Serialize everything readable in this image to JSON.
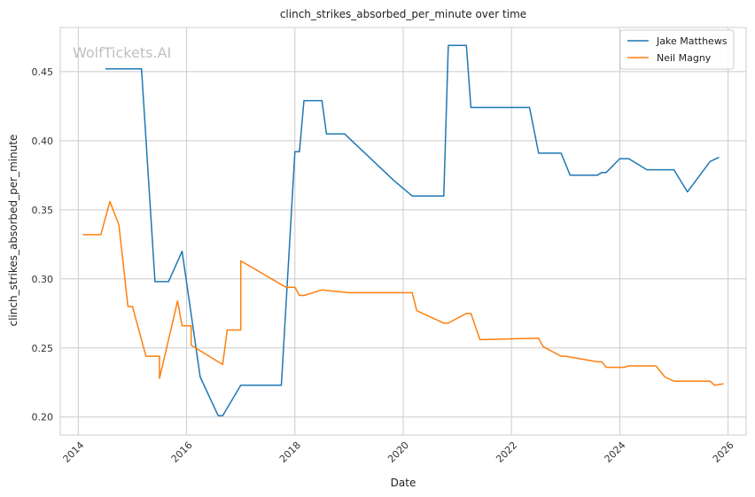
{
  "chart_data": {
    "type": "line",
    "title": "clinch_strikes_absorbed_per_minute over time",
    "xlabel": "Date",
    "ylabel": "clinch_strikes_absorbed_per_minute",
    "x_ticks": [
      "2014",
      "2016",
      "2018",
      "2020",
      "2022",
      "2024",
      "2026"
    ],
    "y_ticks": [
      "0.20",
      "0.25",
      "0.30",
      "0.35",
      "0.40",
      "0.45"
    ],
    "xlim": [
      "2013-09",
      "2026-05"
    ],
    "ylim": [
      0.187,
      0.482
    ],
    "grid": true,
    "legend_position": "top-right",
    "watermark": "WolfTickets.AI",
    "series": [
      {
        "name": "Jake Matthews",
        "color": "#1f77b4",
        "points": [
          [
            "2014-07",
            0.452
          ],
          [
            "2015-03",
            0.452
          ],
          [
            "2015-06",
            0.298
          ],
          [
            "2015-09",
            0.298
          ],
          [
            "2015-12",
            0.32
          ],
          [
            "2016-04",
            0.229
          ],
          [
            "2016-08",
            0.201
          ],
          [
            "2016-09",
            0.201
          ],
          [
            "2017-01",
            0.223
          ],
          [
            "2017-10",
            0.223
          ],
          [
            "2018-01",
            0.392
          ],
          [
            "2018-02",
            0.392
          ],
          [
            "2018-03",
            0.429
          ],
          [
            "2018-07",
            0.429
          ],
          [
            "2018-08",
            0.405
          ],
          [
            "2018-12",
            0.405
          ],
          [
            "2019-11",
            0.371
          ],
          [
            "2020-03",
            0.36
          ],
          [
            "2020-10",
            0.36
          ],
          [
            "2020-11",
            0.469
          ],
          [
            "2021-03",
            0.469
          ],
          [
            "2021-04",
            0.424
          ],
          [
            "2022-05",
            0.424
          ],
          [
            "2022-07",
            0.391
          ],
          [
            "2022-12",
            0.391
          ],
          [
            "2023-02",
            0.375
          ],
          [
            "2023-08",
            0.375
          ],
          [
            "2023-09",
            0.377
          ],
          [
            "2023-10",
            0.377
          ],
          [
            "2024-01",
            0.387
          ],
          [
            "2024-03",
            0.387
          ],
          [
            "2024-07",
            0.379
          ],
          [
            "2025-01",
            0.379
          ],
          [
            "2025-04",
            0.363
          ],
          [
            "2025-09",
            0.385
          ],
          [
            "2025-11",
            0.388
          ]
        ]
      },
      {
        "name": "Neil Magny",
        "color": "#ff7f0e",
        "points": [
          [
            "2014-02",
            0.332
          ],
          [
            "2014-06",
            0.332
          ],
          [
            "2014-08",
            0.356
          ],
          [
            "2014-10",
            0.339
          ],
          [
            "2014-12",
            0.28
          ],
          [
            "2015-01",
            0.28
          ],
          [
            "2015-04",
            0.244
          ],
          [
            "2015-07",
            0.244
          ],
          [
            "2015-07",
            0.228
          ],
          [
            "2015-11",
            0.284
          ],
          [
            "2015-12",
            0.266
          ],
          [
            "2016-02",
            0.266
          ],
          [
            "2016-02",
            0.252
          ],
          [
            "2016-09",
            0.238
          ],
          [
            "2016-10",
            0.263
          ],
          [
            "2017-01",
            0.263
          ],
          [
            "2017-01",
            0.313
          ],
          [
            "2017-11",
            0.294
          ],
          [
            "2018-01",
            0.294
          ],
          [
            "2018-02",
            0.288
          ],
          [
            "2018-03",
            0.288
          ],
          [
            "2018-07",
            0.292
          ],
          [
            "2019-01",
            0.29
          ],
          [
            "2020-03",
            0.29
          ],
          [
            "2020-04",
            0.277
          ],
          [
            "2020-10",
            0.268
          ],
          [
            "2020-11",
            0.268
          ],
          [
            "2021-03",
            0.275
          ],
          [
            "2021-04",
            0.275
          ],
          [
            "2021-06",
            0.256
          ],
          [
            "2022-07",
            0.257
          ],
          [
            "2022-08",
            0.251
          ],
          [
            "2022-12",
            0.244
          ],
          [
            "2023-01",
            0.244
          ],
          [
            "2023-08",
            0.24
          ],
          [
            "2023-09",
            0.24
          ],
          [
            "2023-10",
            0.236
          ],
          [
            "2024-02",
            0.236
          ],
          [
            "2024-03",
            0.237
          ],
          [
            "2024-09",
            0.237
          ],
          [
            "2024-11",
            0.229
          ],
          [
            "2025-01",
            0.226
          ],
          [
            "2025-09",
            0.226
          ],
          [
            "2025-10",
            0.223
          ],
          [
            "2025-12",
            0.224
          ]
        ]
      }
    ]
  }
}
